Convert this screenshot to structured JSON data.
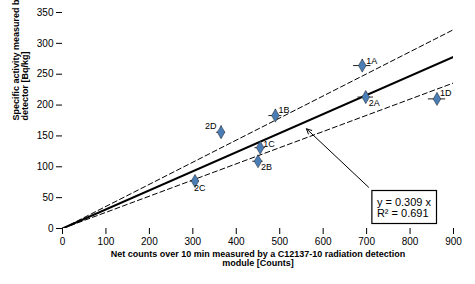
{
  "chart_data": {
    "type": "scatter",
    "xlabel": "Net counts over 10 min measured by a C12137-10 radiation detection\nmodule [Counts]",
    "ylabel": "Specific activity measured by a Ge\ndetector [Bq/kg]",
    "xlim": [
      0,
      900
    ],
    "ylim": [
      0,
      350
    ],
    "xticks": [
      0,
      100,
      200,
      300,
      400,
      500,
      600,
      700,
      800,
      900
    ],
    "yticks": [
      0,
      50,
      100,
      150,
      200,
      250,
      300,
      350
    ],
    "grid": false,
    "annotations": [
      "y = 0.309 x\nR² = 0.691"
    ],
    "series": [
      {
        "type": "line",
        "color": "#000000",
        "line_style": "dashed",
        "x": [
          0,
          900
        ],
        "values": [
          0,
          235.8
        ]
      },
      {
        "type": "line",
        "color": "#000000",
        "line_style": "dashed",
        "x": [
          0,
          900
        ],
        "values": [
          0,
          322.2
        ]
      },
      {
        "type": "line",
        "color": "#000000",
        "line_style": "solid",
        "x": [
          0,
          900
        ],
        "values": [
          0,
          278.1
        ]
      },
      {
        "type": "scatter",
        "color": "#4A7DB5",
        "marker": "diamond",
        "labels": [
          "1A",
          "1B",
          "1C",
          "1D",
          "2A",
          "2B",
          "2C",
          "2D"
        ],
        "x": [
          690,
          490,
          455,
          862,
          698,
          450,
          305,
          365
        ],
        "values": [
          264,
          183,
          131,
          210,
          213,
          109,
          77,
          156
        ],
        "xerr": [
          20,
          15,
          12,
          20,
          18,
          12,
          10,
          10
        ],
        "yerr": [
          10,
          10,
          8,
          8,
          8,
          8,
          8,
          10
        ]
      }
    ]
  }
}
